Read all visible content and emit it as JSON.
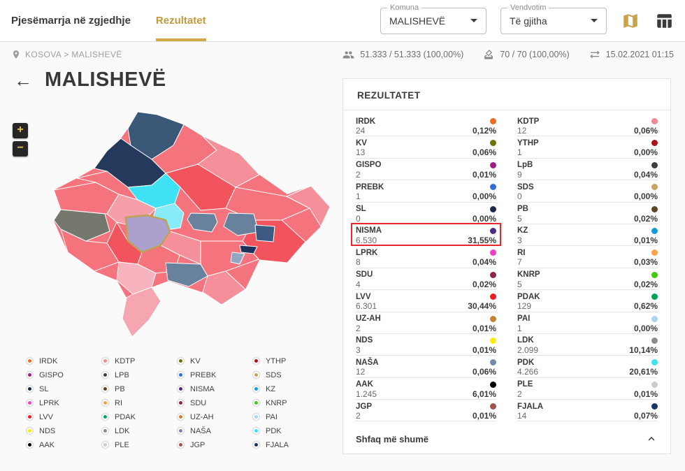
{
  "header": {
    "tabs": [
      {
        "label": "Pjesëmarrja në zgjedhje",
        "active": false
      },
      {
        "label": "Rezultatet",
        "active": true
      }
    ],
    "filters": [
      {
        "label": "Komuna",
        "value": "MALISHEVË"
      },
      {
        "label": "Vendvotim",
        "value": "Të gjitha"
      }
    ]
  },
  "breadcrumb": {
    "location": "KOSOVA > MALISHEVË"
  },
  "stats": {
    "turnout": "51.333 / 51.333 (100,00%)",
    "polling_stations": "70 / 70 (100,00%)",
    "last_update": "15.02.2021 01:15"
  },
  "page": {
    "back_arrow": "←",
    "title": "MALISHEVË"
  },
  "map_controls": {
    "zoom_in": "+",
    "zoom_out": "−"
  },
  "results": {
    "title": "REZULTATET",
    "show_more": "Shfaq më shumë",
    "columns": [
      [
        {
          "party": "IRDK",
          "votes": "24",
          "pct": "0,12%",
          "color": "#ED6A1E",
          "highlight": false
        },
        {
          "party": "KV",
          "votes": "13",
          "pct": "0,06%",
          "color": "#6F7208",
          "highlight": false
        },
        {
          "party": "GISPO",
          "votes": "2",
          "pct": "0,01%",
          "color": "#A01C86",
          "highlight": false
        },
        {
          "party": "PREBK",
          "votes": "1",
          "pct": "0,00%",
          "color": "#2E6FDD",
          "highlight": false
        },
        {
          "party": "SL",
          "votes": "0",
          "pct": "0,00%",
          "color": "#1B2A4A",
          "highlight": false
        },
        {
          "party": "NISMA",
          "votes": "6.530",
          "pct": "31,55%",
          "color": "#4F2B88",
          "highlight": true
        },
        {
          "party": "LPRK",
          "votes": "8",
          "pct": "0,04%",
          "color": "#EF3FC8",
          "highlight": false
        },
        {
          "party": "SDU",
          "votes": "4",
          "pct": "0,02%",
          "color": "#8E2446",
          "highlight": false
        },
        {
          "party": "LVV",
          "votes": "6.301",
          "pct": "30,44%",
          "color": "#EE1C25",
          "highlight": false
        },
        {
          "party": "UZ-AH",
          "votes": "2",
          "pct": "0,01%",
          "color": "#C5842F",
          "highlight": false
        },
        {
          "party": "NDS",
          "votes": "3",
          "pct": "0,01%",
          "color": "#F7EF00",
          "highlight": false
        },
        {
          "party": "NAŠA",
          "votes": "12",
          "pct": "0,06%",
          "color": "#7489B1",
          "highlight": false
        },
        {
          "party": "AAK",
          "votes": "1.245",
          "pct": "6,01%",
          "color": "#000000",
          "highlight": false
        },
        {
          "party": "JGP",
          "votes": "2",
          "pct": "0,01%",
          "color": "#A4524D",
          "highlight": false
        }
      ],
      [
        {
          "party": "KDTP",
          "votes": "12",
          "pct": "0,06%",
          "color": "#EF8A90",
          "highlight": false
        },
        {
          "party": "YTHP",
          "votes": "1",
          "pct": "0,00%",
          "color": "#AD1118",
          "highlight": false
        },
        {
          "party": "LpB",
          "votes": "9",
          "pct": "0,04%",
          "color": "#3F3F3F",
          "highlight": false
        },
        {
          "party": "SDS",
          "votes": "0",
          "pct": "0,00%",
          "color": "#C9A361",
          "highlight": false
        },
        {
          "party": "PB",
          "votes": "5",
          "pct": "0,02%",
          "color": "#5C4522",
          "highlight": false
        },
        {
          "party": "KZ",
          "votes": "3",
          "pct": "0,01%",
          "color": "#1899D5",
          "highlight": false
        },
        {
          "party": "RI",
          "votes": "7",
          "pct": "0,03%",
          "color": "#F9A348",
          "highlight": false
        },
        {
          "party": "KNRP",
          "votes": "5",
          "pct": "0,02%",
          "color": "#44C711",
          "highlight": false
        },
        {
          "party": "PDAK",
          "votes": "129",
          "pct": "0,62%",
          "color": "#00A45B",
          "highlight": false
        },
        {
          "party": "PAI",
          "votes": "1",
          "pct": "0,00%",
          "color": "#ABD3F2",
          "highlight": false
        },
        {
          "party": "LDK",
          "votes": "2.099",
          "pct": "10,14%",
          "color": "#8B8B8B",
          "highlight": false
        },
        {
          "party": "PDK",
          "votes": "4.266",
          "pct": "20,61%",
          "color": "#3FE2F4",
          "highlight": false
        },
        {
          "party": "PLE",
          "votes": "2",
          "pct": "0,01%",
          "color": "#CCCCCC",
          "highlight": false
        },
        {
          "party": "FJALA",
          "votes": "14",
          "pct": "0,07%",
          "color": "#1A3563",
          "highlight": false
        }
      ]
    ]
  },
  "legend": {
    "columns": [
      [
        {
          "name": "IRDK",
          "color": "#ED6A1E"
        },
        {
          "name": "GISPO",
          "color": "#A01C86"
        },
        {
          "name": "SL",
          "color": "#1B2A4A"
        },
        {
          "name": "LPRK",
          "color": "#EF3FC8"
        },
        {
          "name": "LVV",
          "color": "#EE1C25"
        },
        {
          "name": "NDS",
          "color": "#F7EF00"
        },
        {
          "name": "AAK",
          "color": "#000000"
        }
      ],
      [
        {
          "name": "KDTP",
          "color": "#EF8A90"
        },
        {
          "name": "LPB",
          "color": "#3F3F3F"
        },
        {
          "name": "PB",
          "color": "#5C4522"
        },
        {
          "name": "RI",
          "color": "#F9A348"
        },
        {
          "name": "PDAK",
          "color": "#00A45B"
        },
        {
          "name": "LDK",
          "color": "#8B8B8B"
        },
        {
          "name": "PLE",
          "color": "#CCCCCC"
        }
      ],
      [
        {
          "name": "KV",
          "color": "#6F7208"
        },
        {
          "name": "PREBK",
          "color": "#2E6FDD"
        },
        {
          "name": "NISMA",
          "color": "#4F2B88"
        },
        {
          "name": "SDU",
          "color": "#8E2446"
        },
        {
          "name": "UZ-AH",
          "color": "#C5842F"
        },
        {
          "name": "NAŠA",
          "color": "#7489B1"
        },
        {
          "name": "JGP",
          "color": "#A4524D"
        }
      ],
      [
        {
          "name": "YTHP",
          "color": "#AD1118"
        },
        {
          "name": "SDS",
          "color": "#C9A361"
        },
        {
          "name": "KZ",
          "color": "#1899D5"
        },
        {
          "name": "KNRP",
          "color": "#44C711"
        },
        {
          "name": "PAI",
          "color": "#ABD3F2"
        },
        {
          "name": "PDK",
          "color": "#3FE2F4"
        },
        {
          "name": "FJALA",
          "color": "#1A3563"
        }
      ]
    ]
  },
  "colors": {
    "accent_gold": "#C19A3E",
    "highlight_red": "#E8262C"
  }
}
